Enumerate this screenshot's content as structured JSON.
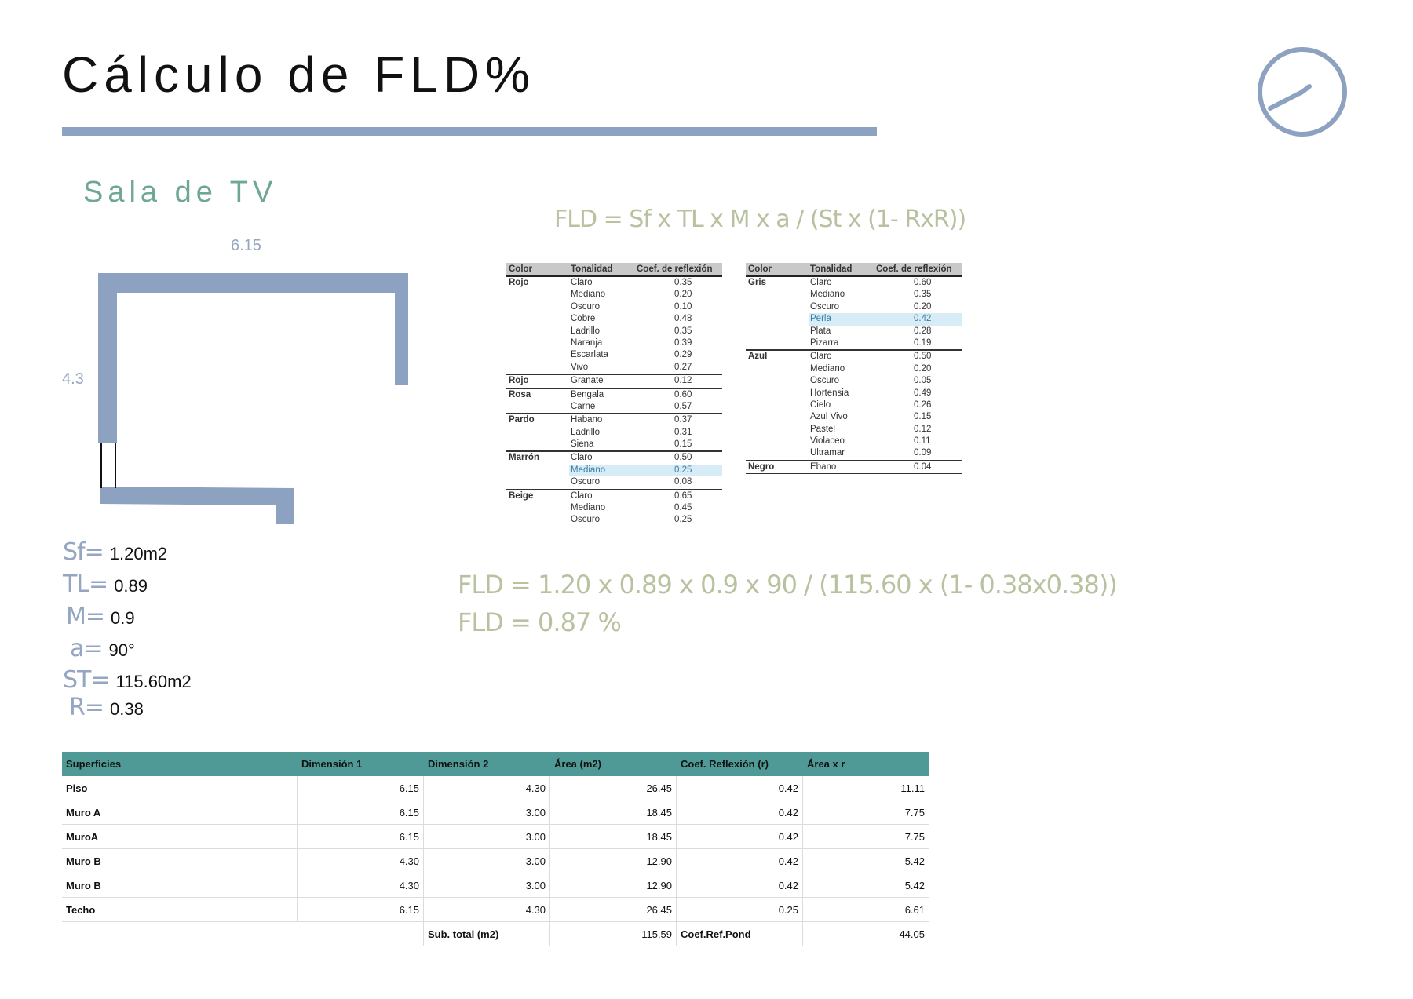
{
  "header": {
    "title": "Cálculo de FLD%",
    "clock_icon": "clock-icon",
    "accent_color": "#8da2c0"
  },
  "section": {
    "title": "Sala de TV",
    "color": "#6ea893"
  },
  "plan": {
    "width_label": "6.15",
    "height_label": "4.3",
    "wall_color": "#8da2c0"
  },
  "formula": {
    "main": "FLD = Sf x TL x M x a / (St x (1- RxR))",
    "calc": "FLD = 1.20 x 0.89 x 0.9 x 90 / (115.60 x (1- 0.38x0.38))",
    "result": "FLD = 0.87 %",
    "color": "#b8c2a0"
  },
  "ref_tables": {
    "headers": [
      "Color",
      "Tonalidad",
      "Coef. de reflexión"
    ],
    "left": [
      {
        "color": "Rojo",
        "rows": [
          [
            "Claro",
            "0.35"
          ],
          [
            "Mediano",
            "0.20"
          ],
          [
            "Oscuro",
            "0.10"
          ],
          [
            "Cobre",
            "0.48"
          ],
          [
            "Ladrillo",
            "0.35"
          ],
          [
            "Naranja",
            "0.39"
          ],
          [
            "Escarlata",
            "0.29"
          ],
          [
            "Vivo",
            "0.27"
          ]
        ]
      },
      {
        "color": "Rojo",
        "rows": [
          [
            "Granate",
            "0.12"
          ]
        ]
      },
      {
        "color": "Rosa",
        "rows": [
          [
            "Bengala",
            "0.60"
          ],
          [
            "Carne",
            "0.57"
          ]
        ]
      },
      {
        "color": "Pardo",
        "rows": [
          [
            "Habano",
            "0.37"
          ],
          [
            "Ladrillo",
            "0.31"
          ],
          [
            "Siena",
            "0.15"
          ]
        ]
      },
      {
        "color": "Marrón",
        "rows": [
          [
            "Claro",
            "0.50"
          ],
          [
            "Mediano",
            "0.25"
          ],
          [
            "Oscuro",
            "0.08"
          ]
        ],
        "highlight": 1
      },
      {
        "color": "Beige",
        "rows": [
          [
            "Claro",
            "0.65"
          ],
          [
            "Mediano",
            "0.45"
          ],
          [
            "Oscuro",
            "0.25"
          ]
        ]
      }
    ],
    "right": [
      {
        "color": "Gris",
        "rows": [
          [
            "Claro",
            "0.60"
          ],
          [
            "Mediano",
            "0.35"
          ],
          [
            "Oscuro",
            "0.20"
          ],
          [
            "Perla",
            "0.42"
          ],
          [
            "Plata",
            "0.28"
          ],
          [
            "Pizarra",
            "0.19"
          ]
        ],
        "highlight": 3
      },
      {
        "color": "Azul",
        "rows": [
          [
            "Claro",
            "0.50"
          ],
          [
            "Mediano",
            "0.20"
          ],
          [
            "Oscuro",
            "0.05"
          ],
          [
            "Hortensia",
            "0.49"
          ],
          [
            "Cielo",
            "0.26"
          ],
          [
            "Azul Vivo",
            "0.15"
          ],
          [
            "Pastel",
            "0.12"
          ],
          [
            "Violaceo",
            "0.11"
          ],
          [
            "Ultramar",
            "0.09"
          ]
        ]
      },
      {
        "color": "Negro",
        "rows": [
          [
            "Ebano",
            "0.04"
          ]
        ]
      }
    ]
  },
  "variables": [
    {
      "name": "Sf=",
      "value": "1.20m2"
    },
    {
      "name": "TL=",
      "value": "0.89"
    },
    {
      "name": "M=",
      "value": "0.9"
    },
    {
      "name": "a=",
      "value": "90°"
    },
    {
      "name": "ST=",
      "value": "115.60m2"
    },
    {
      "name": "R=",
      "value": "0.38"
    }
  ],
  "surfaces": {
    "headers": [
      "Superficies",
      "Dimensión 1",
      "Dimensión 2",
      "Área (m2)",
      "Coef. Reflexión (r)",
      "Área x r"
    ],
    "rows": [
      [
        "Piso",
        "6.15",
        "4.30",
        "26.45",
        "0.42",
        "11.11"
      ],
      [
        "Muro A",
        "6.15",
        "3.00",
        "18.45",
        "0.42",
        "7.75"
      ],
      [
        "MuroA",
        "6.15",
        "3.00",
        "18.45",
        "0.42",
        "7.75"
      ],
      [
        "Muro B",
        "4.30",
        "3.00",
        "12.90",
        "0.42",
        "5.42"
      ],
      [
        "Muro B",
        "4.30",
        "3.00",
        "12.90",
        "0.42",
        "5.42"
      ],
      [
        "Techo",
        "6.15",
        "4.30",
        "26.45",
        "0.25",
        "6.61"
      ]
    ],
    "subtotal_label": "Sub. total (m2)",
    "subtotal_value": "115.59",
    "coef_label": "Coef.Ref.Pond",
    "coef_value": "44.05",
    "header_color": "#4f9996"
  }
}
